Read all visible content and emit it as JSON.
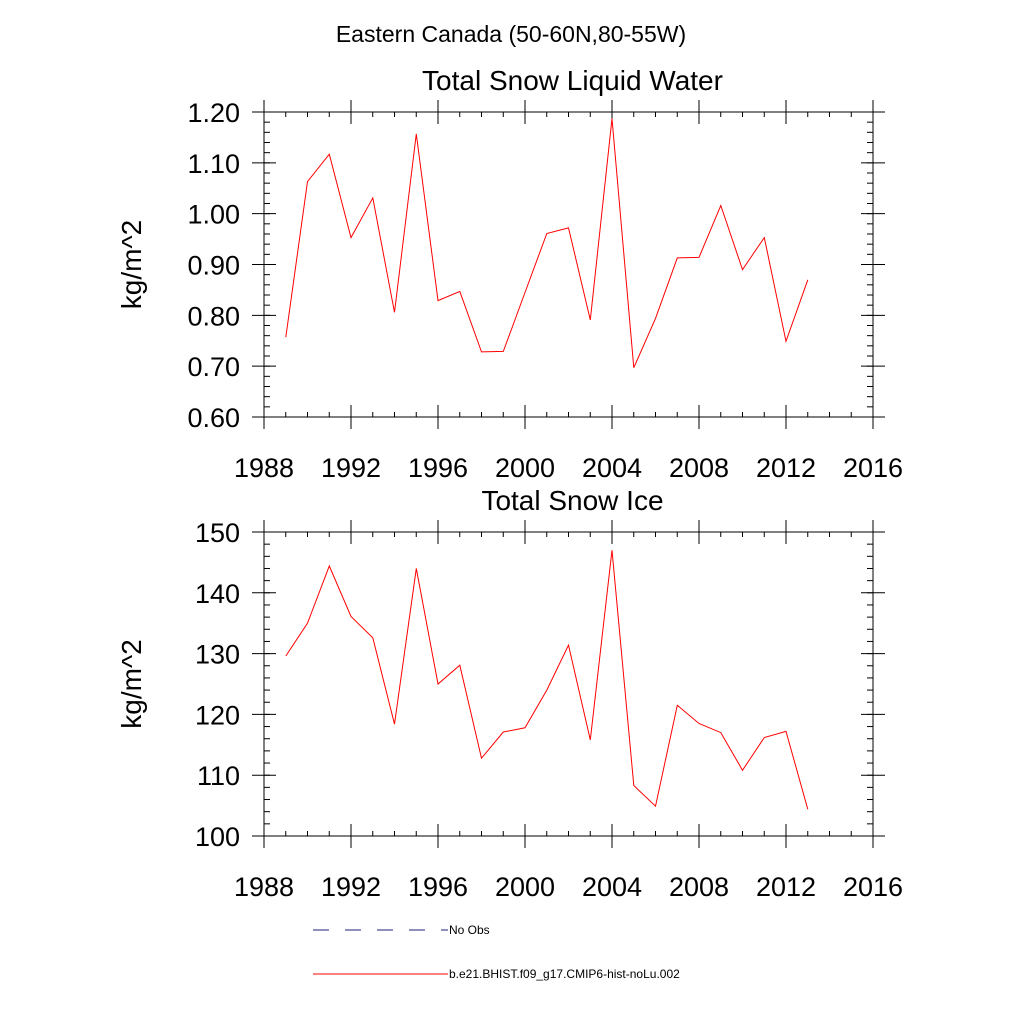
{
  "figure": {
    "title": "Eastern Canada (50-60N,80-55W)"
  },
  "legend": {
    "entries": [
      {
        "label": "No Obs",
        "color": "#1f1f7a",
        "style": "dashed"
      },
      {
        "label": "b.e21.BHIST.f09_g17.CMIP6-hist-noLu.002",
        "color": "#ff0000",
        "style": "solid"
      }
    ]
  },
  "chart_data": [
    {
      "type": "line",
      "title": "Total Snow Liquid Water",
      "xlabel": "",
      "ylabel": "kg/m^2",
      "xlim": [
        1988,
        2016
      ],
      "ylim": [
        0.6,
        1.2
      ],
      "x_ticks": [
        1988,
        1992,
        1996,
        2000,
        2004,
        2008,
        2012,
        2016
      ],
      "y_ticks": [
        "0.60",
        "0.70",
        "0.80",
        "0.90",
        "1.00",
        "1.10",
        "1.20"
      ],
      "x_minor_step": 1,
      "y_minor_step": 0.02,
      "grid": false,
      "series": [
        {
          "name": "b.e21.BHIST.f09_g17.CMIP6-hist-noLu.002",
          "color": "#ff0000",
          "x": [
            1989,
            1990,
            1991,
            1992,
            1993,
            1994,
            1995,
            1996,
            1997,
            1998,
            1999,
            2000,
            2001,
            2002,
            2003,
            2004,
            2005,
            2006,
            2007,
            2008,
            2009,
            2010,
            2011,
            2012,
            2013
          ],
          "y": [
            0.757,
            1.063,
            1.117,
            0.953,
            1.031,
            0.806,
            1.157,
            0.829,
            0.847,
            0.728,
            0.729,
            0.845,
            0.961,
            0.972,
            0.791,
            1.187,
            0.697,
            0.794,
            0.913,
            0.914,
            1.016,
            0.89,
            0.953,
            0.749,
            0.87
          ]
        }
      ]
    },
    {
      "type": "line",
      "title": "Total Snow Ice",
      "xlabel": "",
      "ylabel": "kg/m^2",
      "xlim": [
        1988,
        2016
      ],
      "ylim": [
        100,
        150
      ],
      "x_ticks": [
        1988,
        1992,
        1996,
        2000,
        2004,
        2008,
        2012,
        2016
      ],
      "y_ticks": [
        "100",
        "110",
        "120",
        "130",
        "140",
        "150"
      ],
      "x_minor_step": 1,
      "y_minor_step": 2,
      "grid": false,
      "series": [
        {
          "name": "b.e21.BHIST.f09_g17.CMIP6-hist-noLu.002",
          "color": "#ff0000",
          "x": [
            1989,
            1990,
            1991,
            1992,
            1993,
            1994,
            1995,
            1996,
            1997,
            1998,
            1999,
            2000,
            2001,
            2002,
            2003,
            2004,
            2005,
            2006,
            2007,
            2008,
            2009,
            2010,
            2011,
            2012,
            2013
          ],
          "y": [
            129.6,
            135.0,
            144.4,
            136.1,
            132.6,
            118.4,
            144.0,
            125.0,
            128.1,
            112.8,
            117.1,
            117.8,
            124.0,
            131.4,
            115.8,
            147.0,
            108.3,
            104.9,
            121.5,
            118.5,
            117.0,
            110.8,
            116.2,
            117.2,
            104.4
          ]
        }
      ]
    }
  ]
}
